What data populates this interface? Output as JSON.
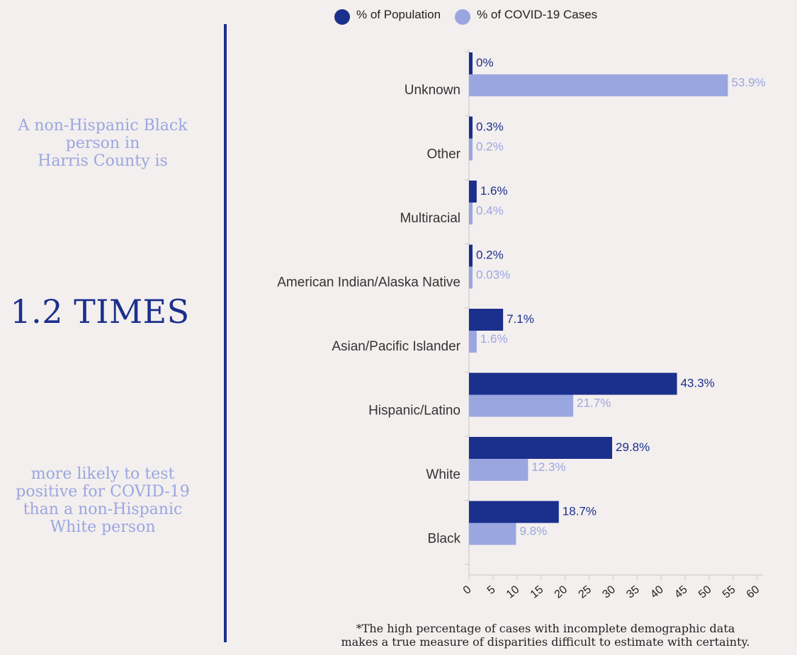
{
  "left_panel": {
    "intro_lines": [
      "A non-Hispanic Black",
      "person in",
      "Harris County is"
    ],
    "big_stat": "1.2 TIMES",
    "outro_lines": [
      "more likely to test",
      "positive for COVID-19",
      "than a non-Hispanic",
      "White person"
    ]
  },
  "colors": {
    "population": "#1b2f8c",
    "cases": "#9aa6e0",
    "background": "#f3efee"
  },
  "footnote_lines": [
    "*The high percentage of cases with incomplete demographic data",
    "makes a true measure of disparities difficult to estimate with certainty."
  ],
  "chart_data": {
    "type": "bar",
    "orientation": "horizontal",
    "categories": [
      "Unknown",
      "Other",
      "Multiracial",
      "American Indian/Alaska Native",
      "Asian/Pacific Islander",
      "Hispanic/Latino",
      "White",
      "Black"
    ],
    "series": [
      {
        "name": "% of Population",
        "color": "#1b2f8c",
        "values": [
          0,
          0.3,
          1.6,
          0.2,
          7.1,
          43.3,
          29.8,
          18.7
        ],
        "labels": [
          "0%",
          "0.3%",
          "1.6%",
          "0.2%",
          "7.1%",
          "43.3%",
          "29.8%",
          "18.7%"
        ]
      },
      {
        "name": "% of COVID-19 Cases",
        "color": "#9aa6e0",
        "values": [
          53.9,
          0.2,
          0.4,
          0.03,
          1.6,
          21.7,
          12.3,
          9.8
        ],
        "labels": [
          "53.9%",
          "0.2%",
          "0.4%",
          "0.03%",
          "1.6%",
          "21.7%",
          "12.3%",
          "9.8%"
        ]
      }
    ],
    "xlim": [
      0,
      60
    ],
    "xticks": [
      0,
      5,
      10,
      15,
      20,
      25,
      30,
      35,
      40,
      45,
      50,
      55,
      60
    ],
    "tick_labels": [
      "0",
      "5",
      "10",
      "15",
      "20",
      "25",
      "30",
      "35",
      "40",
      "45",
      "50",
      "55",
      "60"
    ],
    "grid": false,
    "legend_position": "top"
  }
}
